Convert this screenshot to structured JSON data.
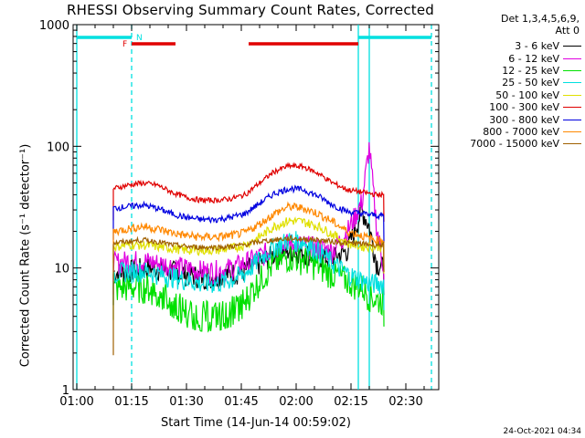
{
  "chart_data": {
    "type": "line",
    "title": "RHESSI Observing Summary Count Rates, Corrected",
    "xlabel": "Start Time (14-Jun-14 00:59:02)",
    "ylabel": "Corrected Count Rate (s⁻¹ detector⁻¹)",
    "yscale": "log",
    "ylim": [
      1,
      1000
    ],
    "xlim": [
      "00:59:02",
      "02:39:00"
    ],
    "x_ticks": [
      "01:00",
      "01:15",
      "01:30",
      "01:45",
      "02:00",
      "02:15",
      "02:30"
    ],
    "y_ticks": [
      "1",
      "10",
      "100",
      "1000"
    ],
    "legend_header": [
      "Det 1,3,4,5,6,9,",
      "Att 0"
    ],
    "legend_position": "right",
    "grid": false,
    "x_minutes": [
      10,
      14,
      18,
      22,
      26,
      30,
      34,
      38,
      42,
      46,
      50,
      54,
      58,
      62,
      66,
      70,
      74,
      78,
      80,
      82,
      84
    ],
    "series": [
      {
        "name": "3 - 6 keV",
        "color": "#000000",
        "values": [
          9,
          9.5,
          10,
          10,
          9.5,
          9,
          8.5,
          8.5,
          9,
          9.5,
          11,
          13,
          14,
          13.5,
          12.5,
          12,
          14,
          30,
          22,
          11,
          10
        ]
      },
      {
        "name": "6 - 12 keV",
        "color": "#e000e0",
        "values": [
          11,
          11.5,
          11.5,
          11,
          10.5,
          10,
          9.5,
          9.5,
          10,
          11,
          12.5,
          14.5,
          16,
          15.5,
          14.5,
          14,
          20,
          35,
          100,
          22,
          10
        ]
      },
      {
        "name": "12 - 25 keV",
        "color": "#00e000",
        "values": [
          6.8,
          7,
          7,
          6.8,
          5.5,
          4.5,
          4.2,
          4.2,
          4.5,
          5.5,
          8,
          11,
          12.5,
          12,
          10.5,
          9,
          8,
          7,
          6,
          5.5,
          5.5
        ]
      },
      {
        "name": "25 - 50 keV",
        "color": "#00e0e0",
        "values": [
          9,
          9.5,
          9.5,
          9,
          8.5,
          8,
          7.5,
          7.5,
          8,
          9,
          12,
          15,
          17,
          16.5,
          14,
          11,
          9,
          8,
          7.5,
          7.5,
          7.5
        ]
      },
      {
        "name": "50 - 100 keV",
        "color": "#e0e000",
        "values": [
          15,
          15.5,
          15.5,
          15,
          14.5,
          14,
          14,
          14,
          14.5,
          15.5,
          18,
          22,
          24.5,
          24,
          22,
          19,
          16,
          15,
          15,
          15,
          15
        ]
      },
      {
        "name": "100 - 300 keV",
        "color": "#e00000",
        "values": [
          45,
          48,
          50,
          48,
          42,
          38,
          36,
          36,
          37,
          40,
          50,
          62,
          69,
          68,
          60,
          50,
          44,
          42,
          41,
          40,
          40
        ]
      },
      {
        "name": "300 - 800 keV",
        "color": "#0000e0",
        "values": [
          31,
          32,
          33,
          31,
          28,
          26,
          25,
          25,
          26,
          28,
          34,
          41,
          45,
          44,
          39,
          33,
          29,
          28,
          27.5,
          27,
          27
        ]
      },
      {
        "name": "800 - 7000 keV",
        "color": "#ff8800",
        "values": [
          20,
          21,
          22,
          21,
          19.5,
          18.5,
          18,
          18,
          18.5,
          19.5,
          23,
          28,
          32,
          31,
          28,
          24,
          20,
          18.5,
          17.5,
          17,
          17
        ]
      },
      {
        "name": "7000 - 15000 keV",
        "color": "#a06000",
        "values": [
          16,
          16.5,
          17,
          16.5,
          15.5,
          15,
          14.8,
          14.8,
          15,
          15.5,
          16.5,
          17,
          17.5,
          17.3,
          17,
          16.5,
          16,
          15.8,
          15.6,
          15.5,
          15.5
        ]
      }
    ],
    "flag_bars": {
      "night": {
        "label": "N",
        "color": "#00e0e0",
        "intervals": [
          [
            0,
            15
          ],
          [
            77,
            97
          ]
        ]
      },
      "flare": {
        "label": "F",
        "color": "#e00000",
        "intervals": [
          [
            15,
            27
          ],
          [
            47,
            77
          ]
        ]
      }
    },
    "vertical_markers": [
      {
        "minute": 0,
        "color": "#00e0e0",
        "style": "solid"
      },
      {
        "minute": 15,
        "color": "#00e0e0",
        "style": "dashed"
      },
      {
        "minute": 77,
        "color": "#00e0e0",
        "style": "solid"
      },
      {
        "minute": 80,
        "color": "#00e0e0",
        "style": "solid"
      },
      {
        "minute": 97,
        "color": "#00e0e0",
        "style": "dashed"
      }
    ]
  },
  "footer": {
    "timestamp": "24-Oct-2021 04:34"
  }
}
